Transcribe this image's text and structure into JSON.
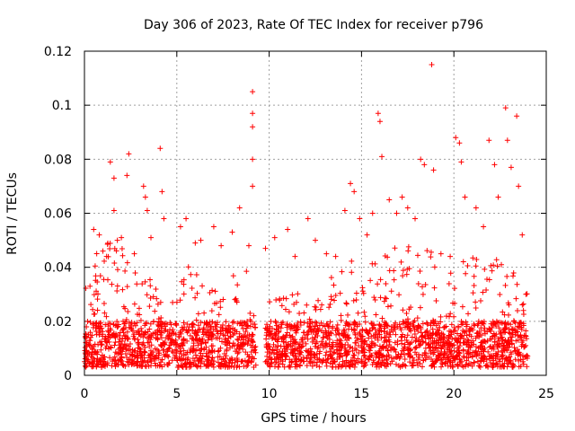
{
  "chart_data": {
    "type": "scatter",
    "title": "Day 306 of 2023, Rate Of TEC Index for receiver p796",
    "xlabel": "GPS time / hours",
    "ylabel": "ROTI / TECUs",
    "xlim": [
      0,
      25
    ],
    "ylim": [
      0,
      0.12
    ],
    "x_ticks": [
      0,
      5,
      10,
      15,
      20,
      25
    ],
    "x_tick_labels": [
      "0",
      "5",
      "10",
      "15",
      "20",
      "25"
    ],
    "y_ticks": [
      0,
      0.02,
      0.04,
      0.06,
      0.08,
      0.1,
      0.12
    ],
    "y_tick_labels": [
      "0",
      "0.02",
      "0.04",
      "0.06",
      "0.08",
      "0.1",
      "0.12"
    ],
    "grid": true,
    "marker": "+",
    "color": "#ff0000",
    "data_gap_hours": [
      9.3,
      9.8
    ],
    "series": [
      {
        "points": [
          [
            0.3,
            0.033
          ],
          [
            0.5,
            0.054
          ],
          [
            0.8,
            0.052
          ],
          [
            1.0,
            0.046
          ],
          [
            1.2,
            0.044
          ],
          [
            1.4,
            0.079
          ],
          [
            1.6,
            0.073
          ],
          [
            1.6,
            0.061
          ],
          [
            2.0,
            0.051
          ],
          [
            2.3,
            0.074
          ],
          [
            2.4,
            0.082
          ],
          [
            2.7,
            0.045
          ],
          [
            3.2,
            0.07
          ],
          [
            3.3,
            0.066
          ],
          [
            3.4,
            0.061
          ],
          [
            3.6,
            0.051
          ],
          [
            4.1,
            0.084
          ],
          [
            4.2,
            0.068
          ],
          [
            4.3,
            0.058
          ],
          [
            5.2,
            0.055
          ],
          [
            5.5,
            0.058
          ],
          [
            6.0,
            0.049
          ],
          [
            6.3,
            0.05
          ],
          [
            7.0,
            0.055
          ],
          [
            7.4,
            0.048
          ],
          [
            8.0,
            0.053
          ],
          [
            8.4,
            0.062
          ],
          [
            8.9,
            0.048
          ],
          [
            9.1,
            0.105
          ],
          [
            9.1,
            0.097
          ],
          [
            9.1,
            0.092
          ],
          [
            9.1,
            0.08
          ],
          [
            9.1,
            0.07
          ],
          [
            9.8,
            0.047
          ],
          [
            10.3,
            0.051
          ],
          [
            11.0,
            0.054
          ],
          [
            11.4,
            0.044
          ],
          [
            12.1,
            0.058
          ],
          [
            12.5,
            0.05
          ],
          [
            13.1,
            0.045
          ],
          [
            13.6,
            0.044
          ],
          [
            14.1,
            0.061
          ],
          [
            14.4,
            0.071
          ],
          [
            14.6,
            0.068
          ],
          [
            14.9,
            0.058
          ],
          [
            15.3,
            0.052
          ],
          [
            15.6,
            0.06
          ],
          [
            15.9,
            0.097
          ],
          [
            16.0,
            0.094
          ],
          [
            16.1,
            0.081
          ],
          [
            16.5,
            0.065
          ],
          [
            16.9,
            0.06
          ],
          [
            17.2,
            0.066
          ],
          [
            17.5,
            0.062
          ],
          [
            17.9,
            0.058
          ],
          [
            18.2,
            0.08
          ],
          [
            18.4,
            0.078
          ],
          [
            18.8,
            0.115
          ],
          [
            18.9,
            0.076
          ],
          [
            19.3,
            0.045
          ],
          [
            19.8,
            0.044
          ],
          [
            20.1,
            0.088
          ],
          [
            20.3,
            0.086
          ],
          [
            20.4,
            0.079
          ],
          [
            20.6,
            0.066
          ],
          [
            21.2,
            0.062
          ],
          [
            21.6,
            0.055
          ],
          [
            21.9,
            0.087
          ],
          [
            22.2,
            0.078
          ],
          [
            22.4,
            0.066
          ],
          [
            22.8,
            0.099
          ],
          [
            22.9,
            0.087
          ],
          [
            23.1,
            0.077
          ],
          [
            23.4,
            0.096
          ],
          [
            23.5,
            0.07
          ],
          [
            23.7,
            0.052
          ],
          [
            23.9,
            0.03
          ]
        ]
      }
    ]
  }
}
